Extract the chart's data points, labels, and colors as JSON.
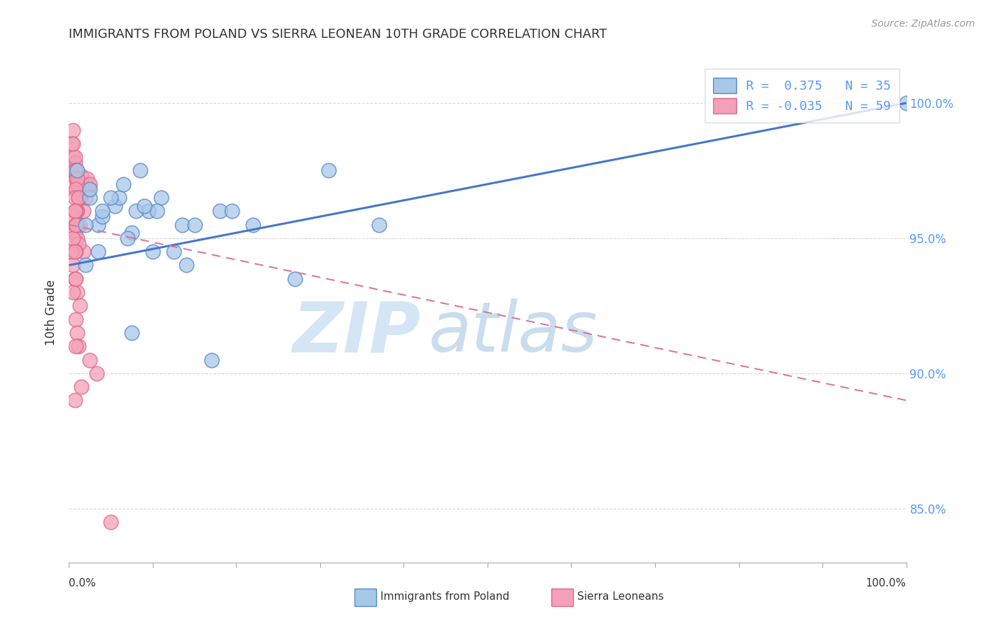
{
  "title": "IMMIGRANTS FROM POLAND VS SIERRA LEONEAN 10TH GRADE CORRELATION CHART",
  "source": "Source: ZipAtlas.com",
  "ylabel": "10th Grade",
  "r_blue": 0.375,
  "n_blue": 35,
  "r_pink": -0.035,
  "n_pink": 59,
  "xlim": [
    0,
    100
  ],
  "ylim": [
    83,
    101.5
  ],
  "yticks": [
    85.0,
    90.0,
    95.0,
    100.0
  ],
  "xticks": [
    0,
    10,
    20,
    30,
    40,
    50,
    60,
    70,
    80,
    90,
    100
  ],
  "blue_color": "#A8C8E8",
  "pink_color": "#F4A0B8",
  "blue_edge_color": "#5588CC",
  "pink_edge_color": "#DD6688",
  "blue_line_color": "#4477CC",
  "pink_line_color": "#DD7799",
  "right_tick_color": "#5599FF",
  "legend_blue_label": "Immigrants from Poland",
  "legend_pink_label": "Sierra Leoneans",
  "blue_trend_x0": 0,
  "blue_trend_y0": 94.0,
  "blue_trend_x1": 100,
  "blue_trend_y1": 100.0,
  "pink_trend_x0": 0,
  "pink_trend_y0": 95.5,
  "pink_trend_x1": 100,
  "pink_trend_y1": 89.0,
  "blue_x": [
    1.0,
    3.5,
    2.5,
    9.5,
    22.0,
    4.0,
    7.5,
    8.0,
    11.0,
    5.5,
    13.5,
    18.0,
    31.0,
    7.0,
    3.5,
    2.0,
    10.5,
    6.0,
    9.0,
    15.0,
    19.5,
    27.0,
    37.0,
    6.5,
    12.5,
    5.0,
    8.5,
    17.0,
    4.0,
    2.5,
    10.0,
    7.5,
    14.0,
    2.0,
    100.0
  ],
  "blue_y": [
    97.5,
    95.5,
    96.5,
    96.0,
    95.5,
    95.8,
    95.2,
    96.0,
    96.5,
    96.2,
    95.5,
    96.0,
    97.5,
    95.0,
    94.5,
    95.5,
    96.0,
    96.5,
    96.2,
    95.5,
    96.0,
    93.5,
    95.5,
    97.0,
    94.5,
    96.5,
    97.5,
    90.5,
    96.0,
    96.8,
    94.5,
    91.5,
    94.0,
    94.0,
    100.0
  ],
  "pink_x": [
    0.3,
    0.5,
    0.7,
    0.8,
    1.0,
    1.1,
    1.3,
    1.5,
    1.7,
    1.9,
    2.0,
    2.1,
    2.3,
    2.5,
    0.3,
    0.7,
    0.8,
    1.0,
    0.5,
    1.3,
    0.8,
    0.7,
    0.5,
    1.1,
    1.0,
    0.8,
    1.3,
    0.7,
    1.0,
    0.5,
    0.8,
    0.7,
    1.7,
    1.0,
    1.1,
    0.8,
    0.5,
    0.7,
    1.0,
    1.3,
    0.8,
    1.0,
    1.1,
    2.5,
    3.3,
    1.5,
    0.7,
    0.8,
    0.5,
    0.3,
    1.0,
    0.8,
    1.1,
    0.5,
    0.7,
    0.8,
    5.0,
    0.7,
    0.8
  ],
  "pink_y": [
    97.5,
    98.0,
    97.8,
    97.2,
    96.8,
    97.0,
    96.5,
    97.3,
    96.0,
    97.0,
    96.5,
    97.2,
    96.8,
    97.0,
    98.5,
    98.0,
    97.5,
    97.0,
    99.0,
    96.5,
    96.0,
    97.5,
    98.5,
    96.5,
    97.2,
    96.8,
    95.5,
    96.5,
    96.0,
    95.8,
    95.5,
    95.2,
    94.5,
    95.0,
    94.8,
    94.5,
    94.0,
    93.5,
    93.0,
    92.5,
    92.0,
    91.5,
    91.0,
    90.5,
    90.0,
    89.5,
    89.0,
    91.0,
    93.0,
    94.5,
    95.5,
    96.0,
    96.5,
    95.0,
    94.5,
    93.5,
    84.5,
    96.0,
    95.5
  ]
}
